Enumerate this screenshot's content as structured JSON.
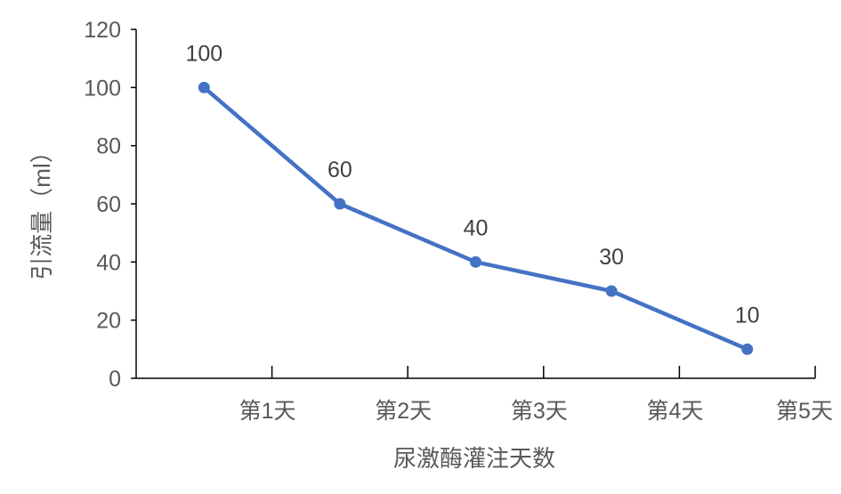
{
  "chart_data": {
    "type": "line",
    "categories": [
      "第1天",
      "第2天",
      "第3天",
      "第4天",
      "第5天"
    ],
    "series": [
      {
        "values": [
          100,
          60,
          40,
          30,
          10
        ],
        "data_labels": true,
        "marker": "circle"
      }
    ],
    "xlabel": "尿激酶灌注天数",
    "ylabel": "引流量（ml）",
    "ylim": [
      0,
      120
    ],
    "yticks": [
      0,
      20,
      40,
      60,
      80,
      100,
      120
    ],
    "grid": false,
    "legend": "none"
  },
  "colors": {
    "series": "#4472C4",
    "axis": "#000000",
    "tick_text": "#595959",
    "label_text": "#404040"
  }
}
